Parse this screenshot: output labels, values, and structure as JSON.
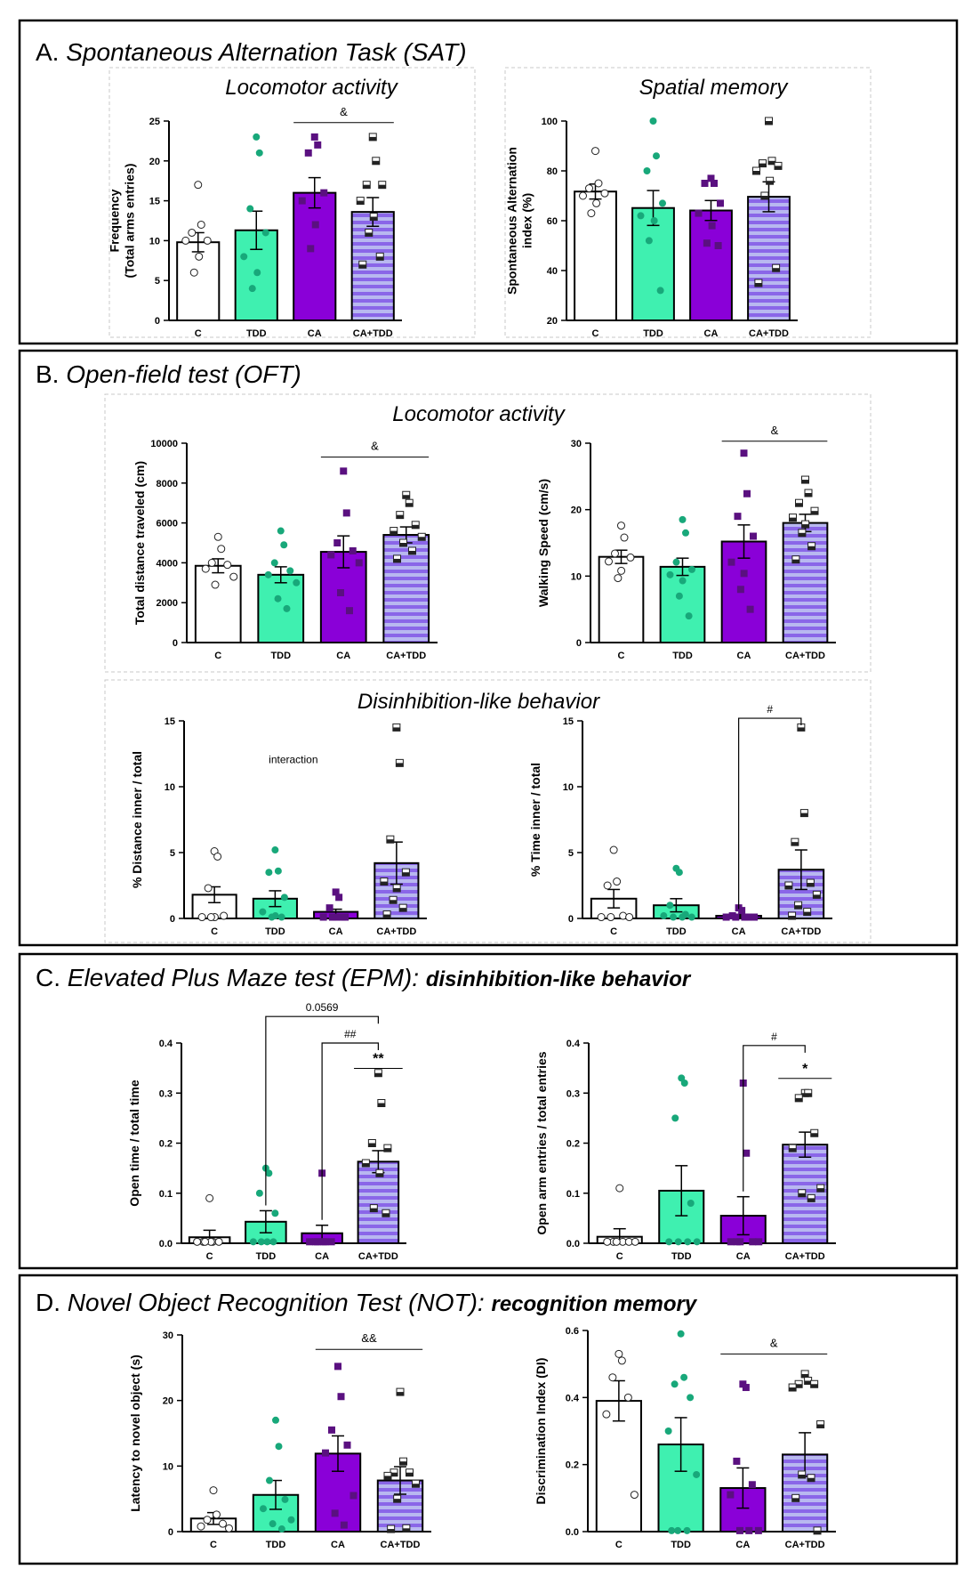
{
  "colors": {
    "C": "#ffffff",
    "TDD": "#3ff0b0",
    "CA": "#8a00d8",
    "stripe_a": "#8a66e8",
    "stripe_b": "#b8b8f0",
    "dot_TDD": "#18a87a",
    "dot_CA": "#5a1080",
    "ink": "#000000",
    "panel_border": "#000000",
    "dashed": "#c8c8c8"
  },
  "sections": [
    {
      "letter": "A.",
      "title": "Spontaneous Alternation Task (SAT)",
      "subtitle": "",
      "groups": [
        "Locomotor activity",
        "Spatial memory"
      ]
    },
    {
      "letter": "B.",
      "title": "Open-field test (OFT)",
      "subtitle": "",
      "groups": [
        "Locomotor activity",
        "Disinhibition-like behavior"
      ]
    },
    {
      "letter": "C.",
      "title": "Elevated Plus Maze test (EPM):",
      "subtitle": "disinhibition-like behavior",
      "groups": []
    },
    {
      "letter": "D.",
      "title": "Novel Object Recognition Test (NOT):",
      "subtitle": "recognition memory",
      "groups": []
    }
  ],
  "chart_data": [
    {
      "id": "sat_loco",
      "type": "bar",
      "categories": [
        "C",
        "TDD",
        "CA",
        "CA+TDD"
      ],
      "ylabel": [
        "Frequency",
        "(Total arms entries)"
      ],
      "ylim": [
        0,
        25
      ],
      "yticks": [
        0,
        5,
        10,
        15,
        20,
        25
      ],
      "values": [
        9.8,
        11.3,
        16.0,
        13.6
      ],
      "sem": [
        1.2,
        2.4,
        1.9,
        1.8
      ],
      "points": [
        [
          17,
          12,
          11,
          10,
          10,
          8,
          6
        ],
        [
          23,
          21,
          14,
          11,
          8,
          6,
          4
        ],
        [
          23,
          22,
          21,
          16,
          15,
          12,
          9
        ],
        [
          23,
          20,
          17,
          17,
          15,
          13,
          11,
          8,
          7
        ]
      ],
      "annotations": [
        {
          "text": "&",
          "from": 2,
          "to": 3,
          "y": 24.8
        }
      ]
    },
    {
      "id": "sat_spatial",
      "type": "bar",
      "categories": [
        "C",
        "TDD",
        "CA",
        "CA+TDD"
      ],
      "ylabel": [
        "Spontaneous Alternation",
        "index (%)"
      ],
      "ylim": [
        20,
        100
      ],
      "yticks": [
        20,
        40,
        60,
        80,
        100
      ],
      "values": [
        71.7,
        65.1,
        64.1,
        69.6
      ],
      "sem": [
        3,
        7,
        4,
        6
      ],
      "points": [
        [
          88,
          75,
          73,
          71,
          70,
          67,
          63
        ],
        [
          100,
          86,
          80,
          67,
          62,
          60,
          52,
          32
        ],
        [
          77,
          75,
          75,
          67,
          63,
          58,
          51,
          50
        ],
        [
          100,
          84,
          83,
          82,
          80,
          76,
          70,
          41,
          35
        ]
      ],
      "annotations": []
    },
    {
      "id": "oft_dist",
      "type": "bar",
      "categories": [
        "C",
        "TDD",
        "CA",
        "CA+TDD"
      ],
      "ylabel": [
        "Total distance traveled (cm)"
      ],
      "ylim": [
        0,
        10000
      ],
      "yticks": [
        0,
        2000,
        4000,
        6000,
        8000,
        10000
      ],
      "values": [
        3850,
        3400,
        4550,
        5400
      ],
      "sem": [
        350,
        400,
        800,
        400
      ],
      "points": [
        [
          5300,
          4700,
          4000,
          3900,
          3700,
          3300,
          2900
        ],
        [
          5600,
          4900,
          4000,
          3600,
          3400,
          3000,
          2200,
          1700
        ],
        [
          8600,
          6500,
          5000,
          4600,
          4400,
          4000,
          2500,
          1600
        ],
        [
          7400,
          7000,
          6400,
          5900,
          5600,
          5300,
          5000,
          4600,
          4200
        ]
      ],
      "annotations": [
        {
          "text": "&",
          "from": 2,
          "to": 3,
          "y": 9300
        }
      ]
    },
    {
      "id": "oft_speed",
      "type": "bar",
      "categories": [
        "C",
        "TDD",
        "CA",
        "CA+TDD"
      ],
      "ylabel": [
        "Walking Speed (cm/s)"
      ],
      "ylim": [
        0,
        30
      ],
      "yticks": [
        0,
        10,
        20,
        30
      ],
      "values": [
        12.9,
        11.4,
        15.2,
        18.0
      ],
      "sem": [
        1.0,
        1.3,
        2.5,
        1.3
      ],
      "points": [
        [
          17.6,
          15.8,
          13.4,
          12.8,
          12.2,
          10.8,
          9.7
        ],
        [
          18.5,
          16.5,
          12.1,
          11.0,
          10.2,
          9.3,
          7.0,
          4.0
        ],
        [
          28.5,
          22.4,
          19.0,
          16.0,
          12.1,
          10.4,
          8.0,
          5.0
        ],
        [
          24.5,
          22.5,
          21.0,
          19.8,
          18.8,
          17.8,
          16.5,
          14.5,
          12.5
        ]
      ],
      "annotations": [
        {
          "text": "&",
          "from": 2,
          "to": 3,
          "y": 30.3
        }
      ]
    },
    {
      "id": "oft_dist_inner",
      "type": "bar",
      "categories": [
        "C",
        "TDD",
        "CA",
        "CA+TDD"
      ],
      "ylabel": [
        "% Distance inner / total"
      ],
      "ylim": [
        0,
        15
      ],
      "yticks": [
        0,
        5,
        10,
        15
      ],
      "values": [
        1.8,
        1.5,
        0.5,
        4.2
      ],
      "sem": [
        0.6,
        0.6,
        0.2,
        1.6
      ],
      "points": [
        [
          5.1,
          4.7,
          2.3,
          0.2,
          0.1,
          0.1,
          0.1
        ],
        [
          5.2,
          3.6,
          3.5,
          1.6,
          0.5,
          0.2,
          0.1,
          0.1
        ],
        [
          2.0,
          1.6,
          0.8,
          0.1,
          0.1,
          0.1,
          0.1,
          0.1
        ],
        [
          14.5,
          11.8,
          6.0,
          3.5,
          2.8,
          2.3,
          1.4,
          0.8,
          0.3
        ]
      ],
      "annotations": [
        {
          "text": "interaction",
          "free": true,
          "x": 1.5,
          "y": 11.8
        }
      ]
    },
    {
      "id": "oft_time_inner",
      "type": "bar",
      "categories": [
        "C",
        "TDD",
        "CA",
        "CA+TDD"
      ],
      "ylabel": [
        "% Time inner / total"
      ],
      "ylim": [
        0,
        15
      ],
      "yticks": [
        0,
        5,
        10,
        15
      ],
      "values": [
        1.5,
        1.0,
        0.2,
        3.7
      ],
      "sem": [
        0.7,
        0.5,
        0.1,
        1.5
      ],
      "points": [
        [
          5.2,
          2.8,
          2.5,
          0.2,
          0.1,
          0.1,
          0.1
        ],
        [
          3.8,
          3.5,
          1.0,
          0.3,
          0.2,
          0.1,
          0.1,
          0.1
        ],
        [
          0.8,
          0.6,
          0.2,
          0.1,
          0.1,
          0.1,
          0.1,
          0.1
        ],
        [
          14.5,
          8.0,
          5.8,
          2.7,
          2.5,
          1.8,
          1.0,
          0.5,
          0.2
        ]
      ],
      "annotations": [
        {
          "text": "#",
          "from": 2,
          "to": 3,
          "y": 15.2,
          "bracket": true
        }
      ]
    },
    {
      "id": "epm_time",
      "type": "bar",
      "categories": [
        "C",
        "TDD",
        "CA",
        "CA+TDD"
      ],
      "ylabel": [
        "Open time / total time"
      ],
      "ylim": [
        0,
        0.4
      ],
      "yticks": [
        0.0,
        0.1,
        0.2,
        0.3,
        0.4
      ],
      "values": [
        0.012,
        0.043,
        0.02,
        0.163
      ],
      "sem": [
        0.014,
        0.022,
        0.016,
        0.022
      ],
      "points": [
        [
          0.09,
          0.003,
          0.003,
          0.003,
          0.003,
          0.003,
          0.003
        ],
        [
          0.15,
          0.14,
          0.1,
          0.06,
          0.003,
          0.003,
          0.003,
          0.003
        ],
        [
          0.14,
          0.003,
          0.003,
          0.003,
          0.003,
          0.003,
          0.003
        ],
        [
          0.34,
          0.28,
          0.2,
          0.19,
          0.16,
          0.14,
          0.07,
          0.06
        ]
      ],
      "annotations": [
        {
          "text": "0.0569",
          "from": 1,
          "to": 3,
          "y": 0.453,
          "bracket": true
        },
        {
          "text": "##",
          "from": 2,
          "to": 3,
          "y": 0.4,
          "bracket": true
        },
        {
          "text": "**",
          "from": 3,
          "to": 3,
          "y": 0.36,
          "line": true
        }
      ]
    },
    {
      "id": "epm_entries",
      "type": "bar",
      "categories": [
        "C",
        "TDD",
        "CA",
        "CA+TDD"
      ],
      "ylabel": [
        "Open arm entries / total entries"
      ],
      "ylim": [
        0,
        0.4
      ],
      "yticks": [
        0.0,
        0.1,
        0.2,
        0.3,
        0.4
      ],
      "values": [
        0.013,
        0.105,
        0.055,
        0.197
      ],
      "sem": [
        0.016,
        0.05,
        0.038,
        0.025
      ],
      "points": [
        [
          0.11,
          0.003,
          0.003,
          0.003,
          0.003,
          0.003,
          0.003
        ],
        [
          0.33,
          0.32,
          0.25,
          0.08,
          0.003,
          0.003,
          0.003,
          0.003
        ],
        [
          0.32,
          0.18,
          0.003,
          0.003,
          0.003,
          0.003,
          0.003
        ],
        [
          0.3,
          0.3,
          0.29,
          0.22,
          0.19,
          0.11,
          0.1,
          0.09
        ]
      ],
      "annotations": [
        {
          "text": "#",
          "from": 2,
          "to": 3,
          "y": 0.395,
          "bracket": true
        },
        {
          "text": "*",
          "from": 3,
          "to": 3,
          "y": 0.34,
          "line": true
        }
      ]
    },
    {
      "id": "not_latency",
      "type": "bar",
      "categories": [
        "C",
        "TDD",
        "CA",
        "CA+TDD"
      ],
      "ylabel": [
        "Latency to novel object (s)"
      ],
      "ylim": [
        0,
        30
      ],
      "yticks": [
        0,
        10,
        20,
        30
      ],
      "values": [
        2.0,
        5.6,
        11.9,
        7.8
      ],
      "sem": [
        0.9,
        2.2,
        2.7,
        2.1
      ],
      "points": [
        [
          6.3,
          2.6,
          1.8,
          1.2,
          0.8,
          0.5
        ],
        [
          17,
          13,
          7.8,
          4.9,
          3.5,
          1.8,
          1.2,
          0.4
        ],
        [
          25.2,
          20.6,
          15.5,
          13.2,
          12,
          5.5,
          2.8,
          1.0
        ],
        [
          21.3,
          10.7,
          9.0,
          9.0,
          8.5,
          7.3,
          5.0,
          0.5,
          0.4
        ]
      ],
      "annotations": [
        {
          "text": "&&",
          "from": 2,
          "to": 3,
          "y": 27.8
        }
      ]
    },
    {
      "id": "not_di",
      "type": "bar",
      "categories": [
        "C",
        "TDD",
        "CA",
        "CA+TDD"
      ],
      "ylabel": [
        "Discrimination Index (DI)"
      ],
      "ylim": [
        0,
        0.6
      ],
      "yticks": [
        0.0,
        0.2,
        0.4,
        0.6
      ],
      "values": [
        0.39,
        0.26,
        0.13,
        0.23
      ],
      "sem": [
        0.06,
        0.08,
        0.06,
        0.065
      ],
      "points": [
        [
          0.53,
          0.51,
          0.46,
          0.4,
          0.35,
          0.11
        ],
        [
          0.59,
          0.46,
          0.44,
          0.4,
          0.3,
          0.17,
          0.003,
          0.003,
          0.003
        ],
        [
          0.44,
          0.43,
          0.21,
          0.14,
          0.11,
          0.003,
          0.003,
          0.003
        ],
        [
          0.47,
          0.45,
          0.44,
          0.44,
          0.43,
          0.32,
          0.17,
          0.16,
          0.1,
          0.003
        ]
      ],
      "annotations": [
        {
          "text": "&",
          "from": 2,
          "to": 3,
          "y": 0.53
        }
      ]
    }
  ]
}
